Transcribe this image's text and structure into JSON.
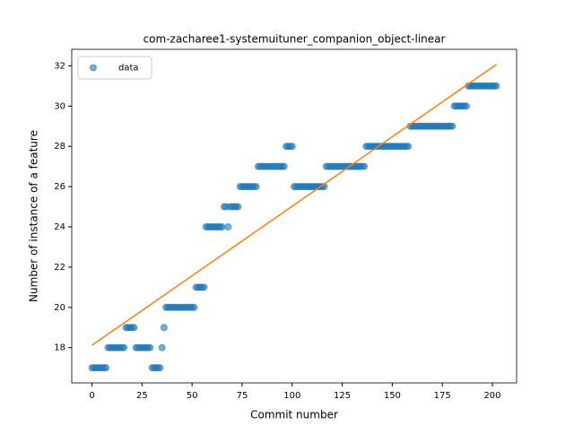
{
  "chart_data": {
    "type": "scatter",
    "title": "com-zacharee1-systemuituner_companion_object-linear",
    "xlabel": "Commit number",
    "ylabel": "Number of instance of a feature",
    "xlim": [
      -10.1,
      212.1
    ],
    "ylim": [
      16.25,
      32.82
    ],
    "xticks": [
      0,
      25,
      50,
      75,
      100,
      125,
      150,
      175,
      200
    ],
    "yticks": [
      18,
      20,
      22,
      24,
      26,
      28,
      30,
      32
    ],
    "legend": "upper left",
    "series": [
      {
        "name": "data",
        "color": "#1f77b4",
        "x": [
          0,
          1,
          2,
          3,
          4,
          5,
          6,
          7,
          8,
          9,
          10,
          11,
          12,
          13,
          14,
          15,
          16,
          17,
          18,
          19,
          20,
          21,
          22,
          23,
          24,
          25,
          26,
          27,
          28,
          29,
          30,
          31,
          32,
          33,
          34,
          35,
          36,
          37,
          38,
          39,
          40,
          41,
          42,
          43,
          44,
          45,
          46,
          47,
          48,
          49,
          50,
          51,
          52,
          53,
          54,
          55,
          56,
          57,
          58,
          59,
          60,
          61,
          62,
          63,
          64,
          65,
          66,
          67,
          68,
          69,
          70,
          71,
          72,
          73,
          74,
          75,
          76,
          77,
          78,
          79,
          80,
          81,
          82,
          83,
          84,
          85,
          86,
          87,
          88,
          89,
          90,
          91,
          92,
          93,
          94,
          95,
          96,
          97,
          98,
          99,
          100,
          101,
          102,
          103,
          104,
          105,
          106,
          107,
          108,
          109,
          110,
          111,
          112,
          113,
          114,
          115,
          116,
          117,
          118,
          119,
          120,
          121,
          122,
          123,
          124,
          125,
          126,
          127,
          128,
          129,
          130,
          131,
          132,
          133,
          134,
          135,
          136,
          137,
          138,
          139,
          140,
          141,
          142,
          143,
          144,
          145,
          146,
          147,
          148,
          149,
          150,
          151,
          152,
          153,
          154,
          155,
          156,
          157,
          158,
          159,
          160,
          161,
          162,
          163,
          164,
          165,
          166,
          167,
          168,
          169,
          170,
          171,
          172,
          173,
          174,
          175,
          176,
          177,
          178,
          179,
          180,
          181,
          182,
          183,
          184,
          185,
          186,
          187,
          188,
          189,
          190,
          191,
          192,
          193,
          194,
          195,
          196,
          197,
          198,
          199,
          200,
          201,
          202
        ],
        "values": [
          17,
          17,
          17,
          17,
          17,
          17,
          17,
          17,
          18,
          18,
          18,
          18,
          18,
          18,
          18,
          18,
          18,
          19,
          19,
          19,
          19,
          19,
          18,
          18,
          18,
          18,
          18,
          18,
          18,
          18,
          17,
          17,
          17,
          17,
          17,
          18,
          19,
          20,
          20,
          20,
          20,
          20,
          20,
          20,
          20,
          20,
          20,
          20,
          20,
          20,
          20,
          20,
          21,
          21,
          21,
          21,
          21,
          24,
          24,
          24,
          24,
          24,
          24,
          24,
          24,
          24,
          25,
          25,
          24,
          25,
          25,
          25,
          25,
          25,
          26,
          26,
          26,
          26,
          26,
          26,
          26,
          26,
          26,
          27,
          27,
          27,
          27,
          27,
          27,
          27,
          27,
          27,
          27,
          27,
          27,
          27,
          27,
          28,
          28,
          28,
          28,
          26,
          26,
          26,
          26,
          26,
          26,
          26,
          26,
          26,
          26,
          26,
          26,
          26,
          26,
          26,
          26,
          27,
          27,
          27,
          27,
          27,
          27,
          27,
          27,
          27,
          27,
          27,
          27,
          27,
          27,
          27,
          27,
          27,
          27,
          27,
          27,
          28,
          28,
          28,
          28,
          28,
          28,
          28,
          28,
          28,
          28,
          28,
          28,
          28,
          28,
          28,
          28,
          28,
          28,
          28,
          28,
          28,
          28,
          29,
          29,
          29,
          29,
          29,
          29,
          29,
          29,
          29,
          29,
          29,
          29,
          29,
          29,
          29,
          29,
          29,
          29,
          29,
          29,
          29,
          29,
          30,
          30,
          30,
          30,
          30,
          30,
          30,
          31,
          31,
          31,
          31,
          31,
          31,
          31,
          31,
          31,
          31,
          31,
          31,
          31,
          31,
          31
        ]
      }
    ],
    "fit_line": {
      "color": "#ff7f0e",
      "x": [
        0,
        202
      ],
      "values": [
        18.12,
        32.07
      ]
    }
  }
}
